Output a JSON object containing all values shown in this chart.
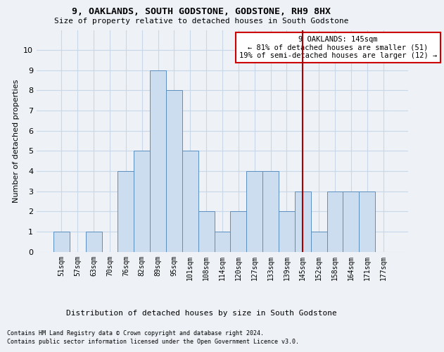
{
  "title": "9, OAKLANDS, SOUTH GODSTONE, GODSTONE, RH9 8HX",
  "subtitle": "Size of property relative to detached houses in South Godstone",
  "xlabel": "Distribution of detached houses by size in South Godstone",
  "ylabel": "Number of detached properties",
  "footer_line1": "Contains HM Land Registry data © Crown copyright and database right 2024.",
  "footer_line2": "Contains public sector information licensed under the Open Government Licence v3.0.",
  "bin_labels": [
    "51sqm",
    "57sqm",
    "63sqm",
    "70sqm",
    "76sqm",
    "82sqm",
    "89sqm",
    "95sqm",
    "101sqm",
    "108sqm",
    "114sqm",
    "120sqm",
    "127sqm",
    "133sqm",
    "139sqm",
    "145sqm",
    "152sqm",
    "158sqm",
    "164sqm",
    "171sqm",
    "177sqm"
  ],
  "bar_heights": [
    1,
    0,
    1,
    0,
    4,
    5,
    9,
    8,
    5,
    2,
    1,
    2,
    4,
    4,
    2,
    3,
    1,
    3,
    3,
    3,
    0
  ],
  "bar_color": "#ccddf0",
  "bar_edge_color": "#5a8fc0",
  "annotation_text": "9 OAKLANDS: 145sqm\n← 81% of detached houses are smaller (51)\n19% of semi-detached houses are larger (12) →",
  "annotation_box_color": "#ffffff",
  "annotation_box_edge_color": "#cc0000",
  "vline_idx": 15,
  "vline_color": "#aa0000",
  "ylim": [
    0,
    11
  ],
  "yticks": [
    0,
    1,
    2,
    3,
    4,
    5,
    6,
    7,
    8,
    9,
    10,
    11
  ],
  "grid_color": "#c8d8e8",
  "bg_color": "#eef2f7"
}
